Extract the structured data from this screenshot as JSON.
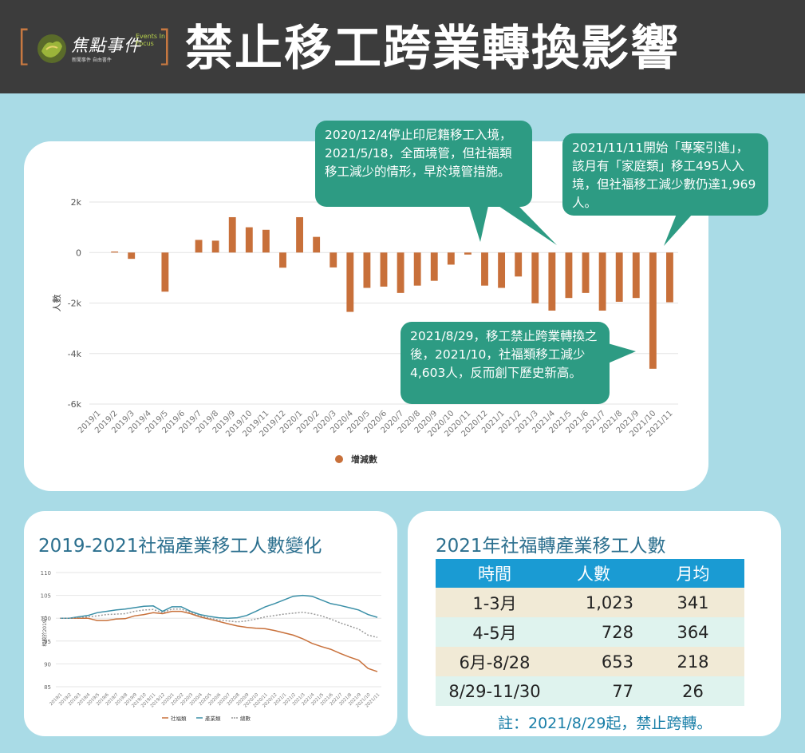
{
  "header": {
    "bracket_left": "[",
    "bracket_right": "]",
    "logo_cn": "焦點事件",
    "logo_en": "Events In Focus",
    "logo_sub": "新聞事件 自由書件",
    "title": "禁止移工跨業轉換影響"
  },
  "callouts": {
    "c1": "2020/12/4停止印尼籍移工入境，2021/5/18，全面境管，但社福類移工減少的情形，早於境管措施。",
    "c2": "2021/11/11開始「專案引進」，該月有「家庭類」移工495人入境，但社福移工減少數仍達1,969 人。",
    "c3": "2021/8/29，移工禁止跨業轉換之後，2021/10，社福類移工減少4,603人，反而創下歷史新高。"
  },
  "colors": {
    "bar": "#c8703a",
    "callout": "#2d9b83",
    "welfare": "#c8703a",
    "industry": "#3a8fa7",
    "total": "#9a9a9a",
    "table_head": "#1a9bd3"
  },
  "chart_data": [
    {
      "type": "bar",
      "ylabel": "人數",
      "ylim": [
        -6000,
        2000
      ],
      "yticks": [
        2000,
        0,
        -2000,
        -4000,
        -6000
      ],
      "ytick_labels": [
        "2k",
        "0",
        "-2k",
        "-4k",
        "-6k"
      ],
      "grid": true,
      "legend": "bottom-center",
      "categories": [
        "2019/1",
        "2019/2",
        "2019/3",
        "2019/4",
        "2019/5",
        "2019/6",
        "2019/7",
        "2019/8",
        "2019/9",
        "2019/10",
        "2019/11",
        "2019/12",
        "2020/1",
        "2020/2",
        "2020/3",
        "2020/4",
        "2020/5",
        "2020/6",
        "2020/7",
        "2020/8",
        "2020/9",
        "2020/10",
        "2020/11",
        "2020/12",
        "2021/1",
        "2021/2",
        "2021/3",
        "2021/4",
        "2021/5",
        "2021/6",
        "2021/7",
        "2021/8",
        "2021/9",
        "2021/10",
        "2021/11"
      ],
      "series": [
        {
          "name": "增減數",
          "values": [
            0,
            40,
            -250,
            0,
            -1550,
            0,
            500,
            470,
            1400,
            1000,
            900,
            -600,
            1400,
            620,
            -590,
            -2350,
            -1400,
            -1350,
            -1600,
            -1310,
            -1120,
            -480,
            -80,
            -1310,
            -1400,
            -950,
            -2010,
            -2300,
            -1800,
            -1600,
            -2300,
            -1950,
            -1800,
            -4603,
            -1969
          ]
        }
      ]
    },
    {
      "type": "line",
      "title": "2019-2021社福產業移工人數變化",
      "ylabel": "相較於2019/1",
      "ylim": [
        85,
        110
      ],
      "yticks": [
        110,
        105,
        100,
        95,
        90,
        85
      ],
      "grid": true,
      "legend": "bottom-center",
      "categories": [
        "2019/1",
        "2019/2",
        "2019/3",
        "2019/4",
        "2019/5",
        "2019/6",
        "2019/7",
        "2019/8",
        "2019/9",
        "2019/10",
        "2019/11",
        "2019/12",
        "2020/1",
        "2020/2",
        "2020/3",
        "2020/4",
        "2020/5",
        "2020/6",
        "2020/7",
        "2020/8",
        "2020/9",
        "2020/10",
        "2020/11",
        "2020/12",
        "2021/1",
        "2021/2",
        "2021/3",
        "2021/4",
        "2021/5",
        "2021/6",
        "2021/7",
        "2021/8",
        "2021/9",
        "2021/10",
        "2021/11"
      ],
      "series": [
        {
          "name": "社福類",
          "values": [
            100,
            100,
            100,
            100,
            99.5,
            99.5,
            99.8,
            99.9,
            100.5,
            100.8,
            101.2,
            101,
            101.5,
            101.5,
            101,
            100.3,
            99.8,
            99.3,
            98.8,
            98.3,
            98,
            97.8,
            97.7,
            97.3,
            96.8,
            96.3,
            95.5,
            94.5,
            93.8,
            93.2,
            92.3,
            91.5,
            90.8,
            89,
            88.3
          ]
        },
        {
          "name": "產業類",
          "values": [
            100,
            100,
            100.3,
            100.6,
            101.2,
            101.5,
            101.8,
            102,
            102.3,
            102.6,
            102.7,
            101.5,
            102.5,
            102.5,
            101.5,
            100.8,
            100.4,
            100.1,
            100,
            100.1,
            100.6,
            101.5,
            102.5,
            103.2,
            104,
            104.8,
            105,
            104.8,
            104,
            103.2,
            102.8,
            102.3,
            101.8,
            100.8,
            100.2
          ]
        },
        {
          "name": "總數",
          "values": [
            100,
            100,
            100.1,
            100.3,
            100.5,
            100.8,
            100.9,
            101,
            101.5,
            101.8,
            101.9,
            101.2,
            102,
            102,
            101.3,
            100.5,
            100,
            99.6,
            99.4,
            99.2,
            99.4,
            99.8,
            100.3,
            100.6,
            100.9,
            101.1,
            101.3,
            101,
            100.5,
            99.8,
            99,
            98.3,
            97.6,
            96.3,
            95.8
          ]
        }
      ]
    }
  ],
  "table": {
    "title": "2021年社福轉產業移工人數",
    "headers": [
      "時間",
      "人數",
      "月均"
    ],
    "rows": [
      [
        "1-3月",
        "1,023",
        "341"
      ],
      [
        "4-5月",
        "728",
        "364"
      ],
      [
        "6月-8/28",
        "653",
        "218"
      ],
      [
        "8/29-11/30",
        "77",
        "26"
      ]
    ],
    "note": "註：2021/8/29起，禁止跨轉。"
  }
}
